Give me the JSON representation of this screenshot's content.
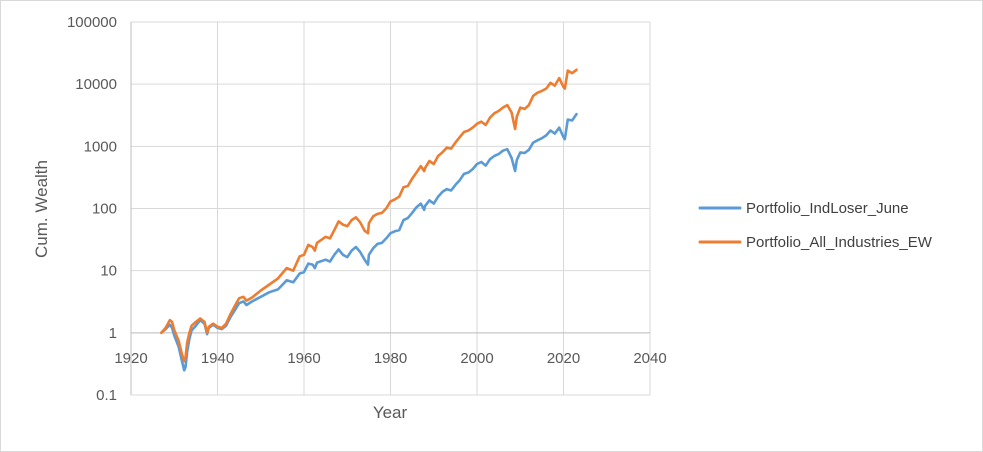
{
  "chart_data": {
    "type": "line",
    "title": "",
    "xlabel": "Year",
    "ylabel": "Cum. Wealth",
    "xlim": [
      1920,
      2040
    ],
    "ylim": [
      0.1,
      100000
    ],
    "yscale": "log",
    "grid": {
      "x": true,
      "y": true
    },
    "legend": "right",
    "x_ticks": [
      "1920",
      "1940",
      "1960",
      "1980",
      "2000",
      "2020",
      "2040"
    ],
    "y_ticks": [
      "0.1",
      "1",
      "10",
      "100",
      "1000",
      "10000",
      "100000"
    ],
    "series": [
      {
        "name": "Portfolio_IndLoser_June",
        "color": "#5B9BD5",
        "x": [
          1927,
          1928,
          1929,
          1929.5,
          1930,
          1931,
          1931.8,
          1932.3,
          1932.6,
          1933,
          1933.5,
          1934,
          1935,
          1936,
          1937,
          1937.6,
          1938,
          1939,
          1940,
          1941,
          1942,
          1943,
          1944,
          1945,
          1946,
          1946.7,
          1948,
          1950,
          1952,
          1954,
          1956,
          1957.5,
          1959,
          1960,
          1961,
          1962,
          1962.5,
          1963,
          1965,
          1966,
          1967,
          1968,
          1969,
          1970,
          1971,
          1972,
          1973,
          1974,
          1974.8,
          1975,
          1976,
          1977,
          1978,
          1979,
          1980,
          1981,
          1982,
          1983,
          1984,
          1985,
          1986,
          1987,
          1987.8,
          1988,
          1989,
          1990,
          1991,
          1992,
          1993,
          1994,
          1995,
          1996,
          1997,
          1998,
          1999,
          2000,
          2001,
          2002,
          2003,
          2004,
          2005,
          2006,
          2007,
          2008,
          2008.8,
          2009.2,
          2010,
          2011,
          2012,
          2013,
          2014,
          2015,
          2016,
          2017,
          2018,
          2019,
          2020,
          2020.3,
          2021,
          2022,
          2023
        ],
        "y": [
          1.0,
          1.15,
          1.35,
          1.2,
          0.9,
          0.6,
          0.35,
          0.25,
          0.28,
          0.5,
          0.8,
          1.1,
          1.3,
          1.6,
          1.4,
          0.95,
          1.2,
          1.35,
          1.2,
          1.15,
          1.3,
          1.8,
          2.3,
          3.0,
          3.2,
          2.8,
          3.2,
          3.8,
          4.5,
          5.0,
          7.0,
          6.5,
          9.0,
          9.5,
          13.0,
          12.5,
          11.0,
          13.5,
          15.0,
          14.0,
          18.0,
          22.0,
          18.0,
          16.5,
          21.0,
          24.0,
          20.0,
          15.0,
          12.5,
          18.0,
          23.0,
          27.0,
          28.0,
          33.0,
          40.0,
          43.0,
          45.0,
          65.0,
          70.0,
          85.0,
          105.0,
          120.0,
          95.0,
          110.0,
          135.0,
          120.0,
          155.0,
          185.0,
          205.0,
          195.0,
          240.0,
          285.0,
          360.0,
          380.0,
          430.0,
          520.0,
          560.0,
          490.0,
          620.0,
          700.0,
          750.0,
          850.0,
          900.0,
          650.0,
          400.0,
          600.0,
          800.0,
          780.0,
          880.0,
          1150.0,
          1250.0,
          1350.0,
          1500.0,
          1800.0,
          1600.0,
          2000.0,
          1400.0,
          1300.0,
          2700.0,
          2600.0,
          3300.0
        ]
      },
      {
        "name": "Portfolio_All_Industries_EW",
        "color": "#ED7D31",
        "x": [
          1927,
          1928,
          1929,
          1929.5,
          1930,
          1931,
          1931.8,
          1932.3,
          1932.6,
          1933,
          1933.5,
          1934,
          1935,
          1936,
          1937,
          1937.6,
          1938,
          1939,
          1940,
          1941,
          1942,
          1943,
          1944,
          1945,
          1946,
          1946.7,
          1948,
          1950,
          1952,
          1954,
          1956,
          1957.5,
          1959,
          1960,
          1961,
          1962,
          1962.5,
          1963,
          1965,
          1966,
          1967,
          1968,
          1969,
          1970,
          1971,
          1972,
          1973,
          1974,
          1974.8,
          1975,
          1976,
          1977,
          1978,
          1979,
          1980,
          1981,
          1982,
          1983,
          1984,
          1985,
          1986,
          1987,
          1987.8,
          1988,
          1989,
          1990,
          1991,
          1992,
          1993,
          1994,
          1995,
          1996,
          1997,
          1998,
          1999,
          2000,
          2001,
          2002,
          2003,
          2004,
          2005,
          2006,
          2007,
          2008,
          2008.8,
          2009.2,
          2010,
          2011,
          2012,
          2013,
          2014,
          2015,
          2016,
          2017,
          2018,
          2019,
          2020,
          2020.3,
          2021,
          2022,
          2023
        ],
        "y": [
          1.0,
          1.2,
          1.6,
          1.5,
          1.1,
          0.75,
          0.45,
          0.35,
          0.4,
          0.7,
          1.0,
          1.3,
          1.5,
          1.7,
          1.5,
          1.0,
          1.25,
          1.4,
          1.25,
          1.2,
          1.4,
          2.0,
          2.7,
          3.6,
          3.8,
          3.3,
          3.7,
          4.8,
          6.0,
          7.5,
          11.0,
          10.0,
          17.0,
          18.0,
          26.0,
          24.0,
          21.0,
          28.0,
          35.0,
          33.0,
          45.0,
          62.0,
          55.0,
          52.0,
          65.0,
          72.0,
          60.0,
          44.0,
          40.0,
          58.0,
          75.0,
          82.0,
          85.0,
          100.0,
          130.0,
          140.0,
          155.0,
          220.0,
          230.0,
          300.0,
          380.0,
          480.0,
          400.0,
          450.0,
          580.0,
          520.0,
          700.0,
          800.0,
          950.0,
          920.0,
          1150.0,
          1400.0,
          1700.0,
          1800.0,
          2000.0,
          2300.0,
          2500.0,
          2200.0,
          2900.0,
          3400.0,
          3700.0,
          4200.0,
          4600.0,
          3500.0,
          1900.0,
          3000.0,
          4200.0,
          4000.0,
          4600.0,
          6500.0,
          7300.0,
          7800.0,
          8500.0,
          10500.0,
          9500.0,
          12500.0,
          9000.0,
          8500.0,
          16500.0,
          15000.0,
          17000.0
        ]
      }
    ]
  }
}
